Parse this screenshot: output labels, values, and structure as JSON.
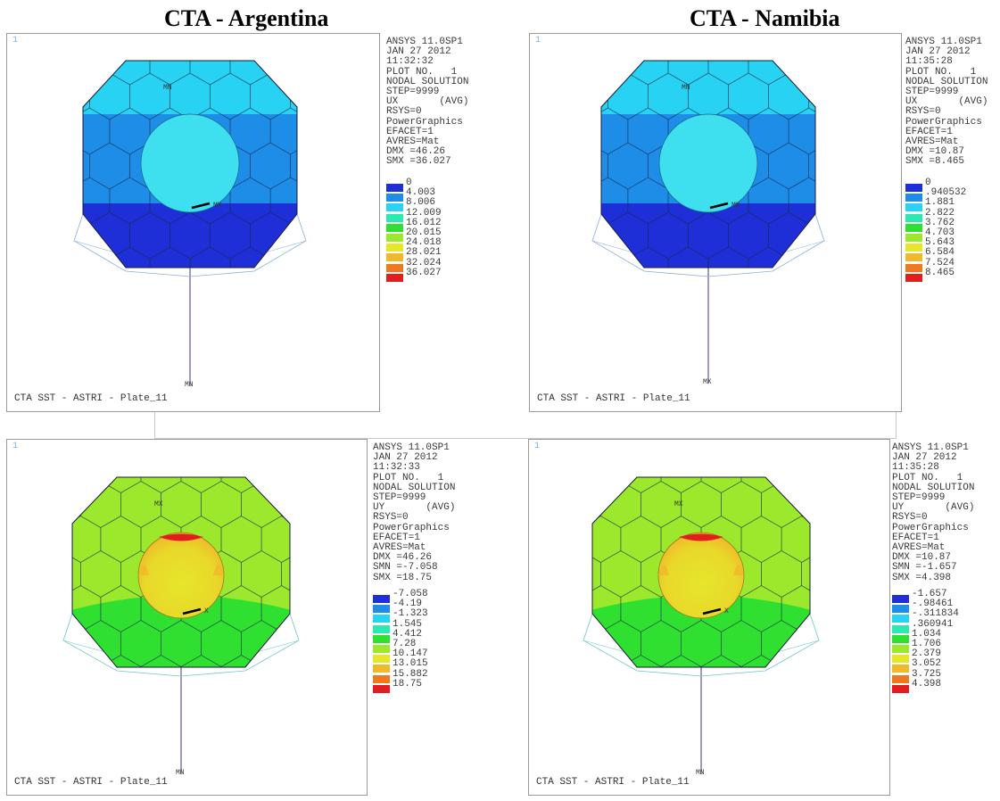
{
  "titles": {
    "left": "CTA - Argentina",
    "right": "CTA - Namibia"
  },
  "colors": {
    "legend": [
      "#1e2fd8",
      "#1e8de8",
      "#27d2f2",
      "#2ee8b2",
      "#30e030",
      "#9be82c",
      "#e6e62a",
      "#f0b82a",
      "#f0781e",
      "#e01e1e"
    ]
  },
  "panels": [
    {
      "id": "argentina-ux",
      "corner": "1",
      "info": [
        "ANSYS 11.0SP1",
        "JAN 27 2012",
        "11:32:32",
        "PLOT NO.   1",
        "NODAL SOLUTION",
        "STEP=9999",
        "UX       (AVG)",
        "RSYS=0",
        "PowerGraphics",
        "EFACET=1",
        "AVRES=Mat",
        "DMX =46.26",
        "SMX =36.027"
      ],
      "legend": [
        "0",
        "4.003",
        "8.006",
        "12.009",
        "16.012",
        "20.015",
        "24.018",
        "28.021",
        "32.024",
        "36.027"
      ],
      "caption": "CTA SST - ASTRI - Plate_11",
      "labels": {
        "top": "MN",
        "center": "MX",
        "bottom": "MN"
      }
    },
    {
      "id": "namibia-ux",
      "corner": "1",
      "info": [
        "ANSYS 11.0SP1",
        "JAN 27 2012",
        "11:35:28",
        "PLOT NO.   1",
        "NODAL SOLUTION",
        "STEP=9999",
        "UX       (AVG)",
        "RSYS=0",
        "PowerGraphics",
        "EFACET=1",
        "AVRES=Mat",
        "DMX =10.87",
        "SMX =8.465"
      ],
      "legend": [
        "0",
        ".940532",
        "1.881",
        "2.822",
        "3.762",
        "4.703",
        "5.643",
        "6.584",
        "7.524",
        "8.465"
      ],
      "caption": "CTA SST - ASTRI - Plate_11",
      "labels": {
        "top": "MN",
        "center": "MX",
        "bottom": "MX"
      }
    },
    {
      "id": "argentina-uy",
      "corner": "1",
      "info": [
        "ANSYS 11.0SP1",
        "JAN 27 2012",
        "11:32:33",
        "PLOT NO.   1",
        "NODAL SOLUTION",
        "STEP=9999",
        "UY       (AVG)",
        "RSYS=0",
        "PowerGraphics",
        "EFACET=1",
        "AVRES=Mat",
        "DMX =46.26",
        "SMN =-7.058",
        "SMX =18.75"
      ],
      "legend": [
        "-7.058",
        "-4.19",
        "-1.323",
        "1.545",
        "4.412",
        "7.28",
        "10.147",
        "13.015",
        "15.882",
        "18.75"
      ],
      "caption": "CTA SST - ASTRI - Plate_11",
      "labels": {
        "top": "MX",
        "center": "X",
        "bottom": "MN"
      }
    },
    {
      "id": "namibia-uy",
      "corner": "1",
      "info": [
        "ANSYS 11.0SP1",
        "JAN 27 2012",
        "11:35:28",
        "PLOT NO.   1",
        "NODAL SOLUTION",
        "STEP=9999",
        "UY       (AVG)",
        "RSYS=0",
        "PowerGraphics",
        "EFACET=1",
        "AVRES=Mat",
        "DMX =10.87",
        "SMN =-1.657",
        "SMX =4.398"
      ],
      "legend": [
        "-1.657",
        "-.98461",
        "-.311834",
        ".360941",
        "1.034",
        "1.706",
        "2.379",
        "3.052",
        "3.725",
        "4.398"
      ],
      "caption": "CTA SST - ASTRI - Plate_11",
      "labels": {
        "top": "MX",
        "center": "X",
        "bottom": "MN"
      }
    }
  ]
}
